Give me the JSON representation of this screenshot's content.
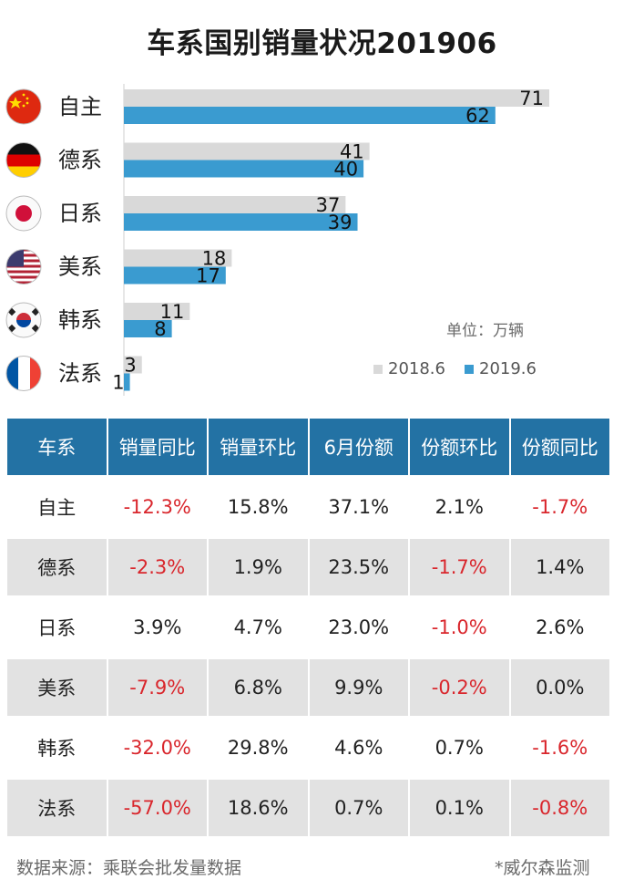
{
  "title": "车系国别销量状况201906",
  "unit_label": "单位：万辆",
  "chart_data": {
    "type": "bar",
    "orientation": "horizontal",
    "categories": [
      "自主",
      "德系",
      "日系",
      "美系",
      "韩系",
      "法系"
    ],
    "series": [
      {
        "name": "2018.6",
        "values": [
          71,
          41,
          37,
          18,
          11,
          3
        ],
        "color": "#d9d9d9"
      },
      {
        "name": "2019.6",
        "values": [
          62,
          40,
          39,
          17,
          8,
          1
        ],
        "color": "#3a9bd0"
      }
    ],
    "flag_icons": [
      "china-flag-icon",
      "germany-flag-icon",
      "japan-flag-icon",
      "usa-flag-icon",
      "korea-flag-icon",
      "france-flag-icon"
    ],
    "data_labels": true,
    "legend_position": "bottom-right",
    "grid": false
  },
  "table": {
    "headers": [
      "车系",
      "销量同比",
      "销量环比",
      "6月份额",
      "份额环比",
      "份额同比"
    ],
    "rows": [
      [
        "自主",
        "-12.3%",
        "15.8%",
        "37.1%",
        "2.1%",
        "-1.7%"
      ],
      [
        "德系",
        "-2.3%",
        "1.9%",
        "23.5%",
        "-1.7%",
        "1.4%"
      ],
      [
        "日系",
        "3.9%",
        "4.7%",
        "23.0%",
        "-1.0%",
        "2.6%"
      ],
      [
        "美系",
        "-7.9%",
        "6.8%",
        "9.9%",
        "-0.2%",
        "0.0%"
      ],
      [
        "韩系",
        "-32.0%",
        "29.8%",
        "4.6%",
        "0.7%",
        "-1.6%"
      ],
      [
        "法系",
        "-57.0%",
        "18.6%",
        "0.7%",
        "0.1%",
        "-0.8%"
      ]
    ],
    "header_color": "#2372a4",
    "negative_color": "#d9262c"
  },
  "footer": {
    "source": "数据来源：乘联会批发量数据",
    "credit": "*威尔森监测"
  }
}
